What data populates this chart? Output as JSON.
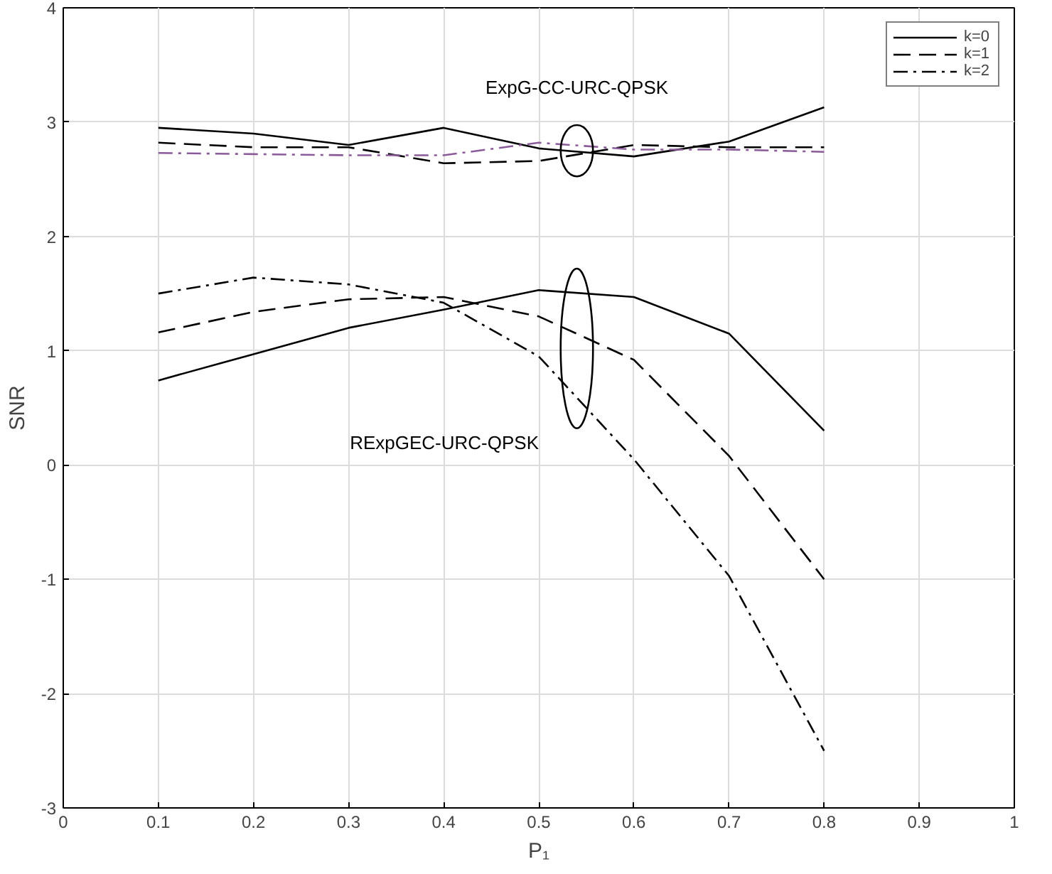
{
  "chart_data": {
    "type": "line",
    "xlabel": "P₁",
    "ylabel": "SNR",
    "x": [
      0.1,
      0.2,
      0.3,
      0.4,
      0.5,
      0.6,
      0.7,
      0.8
    ],
    "xlim": [
      0,
      1
    ],
    "xticks": [
      0,
      0.1,
      0.2,
      0.3,
      0.4,
      0.5,
      0.6,
      0.7,
      0.8,
      0.9,
      1
    ],
    "ylim": [
      -3,
      4
    ],
    "yticks": [
      -3,
      -2,
      -1,
      0,
      1,
      2,
      3,
      4
    ],
    "grid": true,
    "legend": "top right",
    "marker": "none",
    "series": [
      {
        "name": "k=0",
        "color": "#000000",
        "line_style": "solid",
        "values": [
          0.74,
          0.97,
          1.2,
          1.36,
          1.53,
          1.47,
          1.15,
          0.3
        ]
      },
      {
        "name": "k=1",
        "color": "#000000",
        "line_style": "dashed",
        "values": [
          1.16,
          1.34,
          1.45,
          1.47,
          1.3,
          0.92,
          0.08,
          -1.0
        ]
      },
      {
        "name": "k=2",
        "color": "#000000",
        "line_style": "dashdot",
        "values": [
          1.5,
          1.64,
          1.58,
          1.42,
          0.95,
          0.05,
          -0.97,
          -2.5
        ]
      },
      {
        "color": "#000000",
        "line_style": "solid",
        "values": [
          2.95,
          2.9,
          2.8,
          2.95,
          2.77,
          2.7,
          2.83,
          3.13
        ]
      },
      {
        "color": "#000000",
        "line_style": "dashed",
        "values": [
          2.82,
          2.78,
          2.78,
          2.64,
          2.66,
          2.8,
          2.78,
          2.78
        ]
      },
      {
        "color": "#8a5a9a",
        "line_style": "dashdot",
        "values": [
          2.73,
          2.72,
          2.71,
          2.71,
          2.82,
          2.76,
          2.76,
          2.74
        ]
      }
    ],
    "annotations": [
      {
        "text": "ExpG-CC-URC-QPSK",
        "x": 0.54,
        "y": 2.75
      },
      "RExpGEC-URC-QPSK"
    ]
  }
}
